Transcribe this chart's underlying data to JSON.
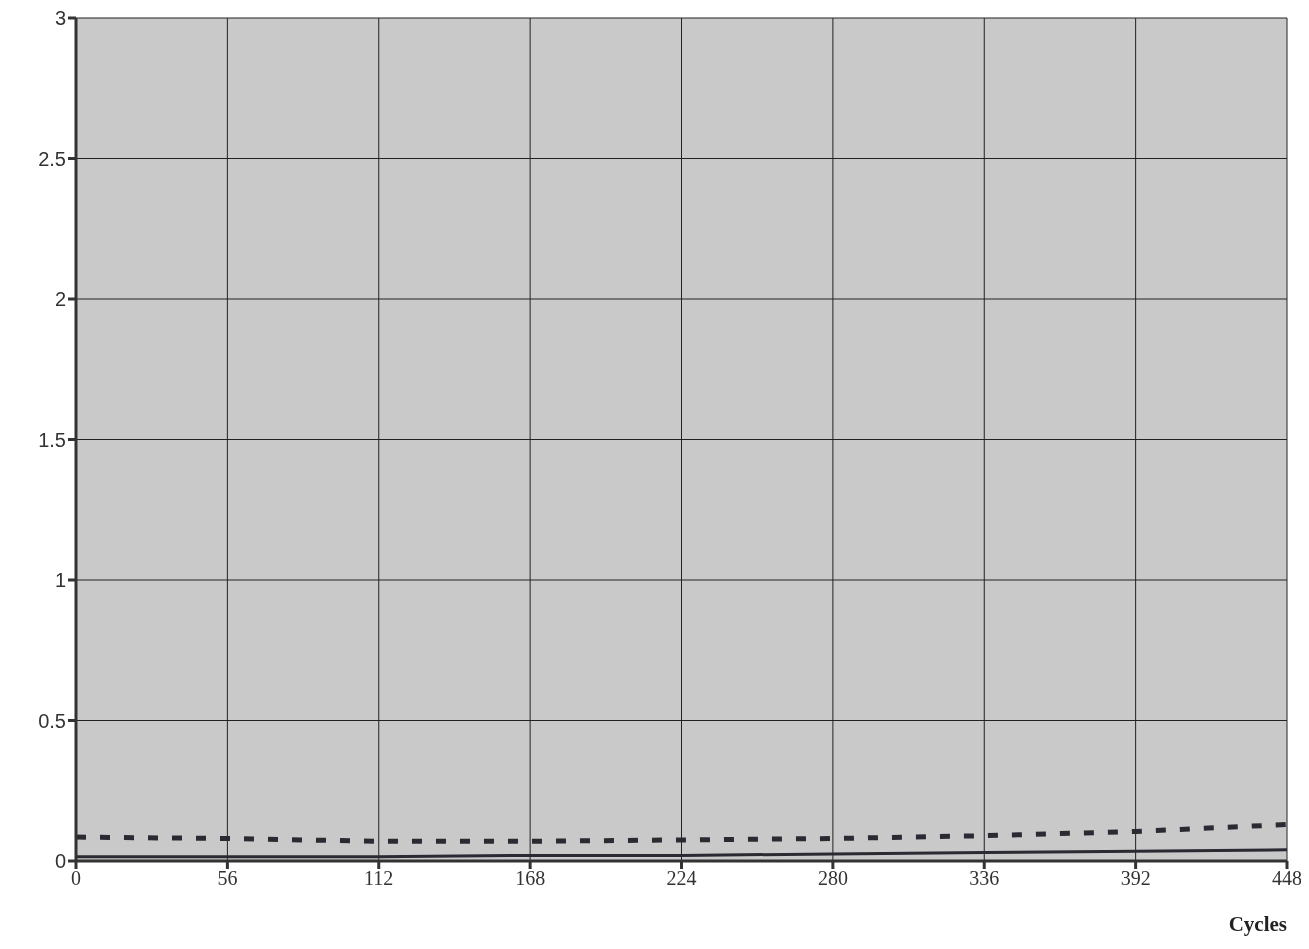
{
  "chart_data": {
    "type": "line",
    "xlabel": "Cycles",
    "x": [
      0,
      56,
      112,
      168,
      224,
      280,
      336,
      392,
      448
    ],
    "series": [
      {
        "color": "#2a2a33",
        "line_style": "dashed",
        "values": [
          0.085,
          0.08,
          0.07,
          0.07,
          0.075,
          0.08,
          0.09,
          0.105,
          0.13
        ]
      },
      {
        "color": "#2a2a33",
        "line_style": "solid",
        "values": [
          0.015,
          0.015,
          0.015,
          0.02,
          0.02,
          0.025,
          0.03,
          0.035,
          0.04
        ]
      }
    ],
    "xlim": [
      0,
      448
    ],
    "xticks": [
      0,
      56,
      112,
      168,
      224,
      280,
      336,
      392,
      448
    ],
    "ylim": [
      0,
      3
    ],
    "yticks": [
      0,
      0.5,
      1,
      1.5,
      2,
      2.5,
      3
    ],
    "grid": true,
    "marker": "none"
  }
}
